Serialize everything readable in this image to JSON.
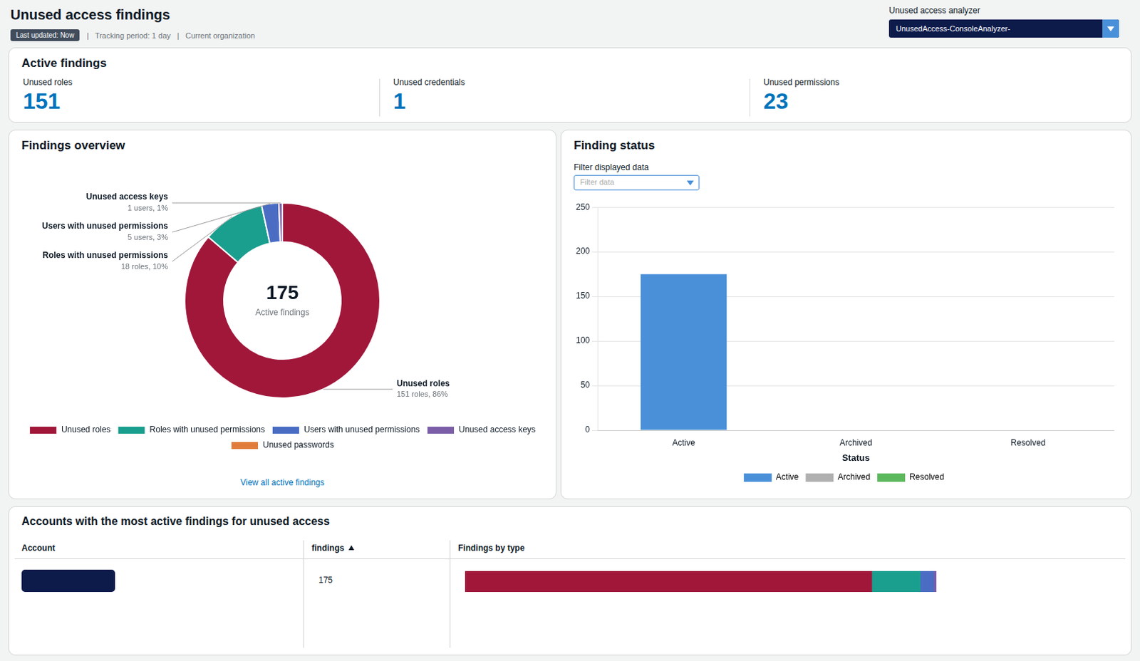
{
  "title": "Unused access findings",
  "subtitle": [
    "Last updated: Now",
    "  |   Tracking period: 1 day   |   Current organization"
  ],
  "annotations": [
    "Unused access analyzer",
    "UnusedAccess-ConsoleAnalyzer-"
  ],
  "chart_data": [
    {
      "type": "metrics",
      "title": "Active findings",
      "categories": [
        "Unused roles",
        "Unused credentials",
        "Unused permissions"
      ],
      "values": [
        151,
        1,
        23
      ]
    },
    {
      "type": "doughnut",
      "title": "Findings overview",
      "categories": [
        "Unused roles",
        "Roles with unused permissions",
        "Users with unused permissions",
        "Unused access keys",
        "Unused passwords"
      ],
      "values": [
        151,
        18,
        5,
        1,
        null
      ],
      "colors": [
        "#a0173a",
        "#1a9e8e",
        "#4a6cc3",
        "#7b5ea7",
        "#e07b39"
      ],
      "data_labels": true,
      "value_labels": [
        "151 roles, 86%",
        "18 roles, 10%",
        "5 users, 3%",
        "1 users, 1%",
        null
      ],
      "legend": "bottom",
      "annotations": [
        "175",
        "Active findings",
        "View all active findings"
      ]
    },
    {
      "type": "bar",
      "title": "Finding status",
      "categories": [
        "Active",
        "Archived",
        "Resolved"
      ],
      "values": [
        175,
        0,
        0
      ],
      "colors": [
        "#4a90d9",
        "#b0b0b0",
        "#5cb85c"
      ],
      "xlabel": "Status",
      "ylim": [
        0,
        250
      ],
      "yticks": [
        0,
        50,
        100,
        150,
        200,
        250
      ],
      "grid": true,
      "legend": "bottom",
      "annotations": [
        "Filter displayed data",
        "Filter data"
      ]
    },
    {
      "type": "bar",
      "orientation": "horizontal",
      "stacked": true,
      "title": "Accounts with the most active findings for unused access",
      "categories": [
        null
      ],
      "series": [
        {
          "color": "#a0173a",
          "values": [
            151
          ]
        },
        {
          "color": "#1a9e8e",
          "values": [
            18
          ]
        },
        {
          "color": "#4a6cc3",
          "values": [
            5
          ]
        },
        {
          "color": "#7b5ea7",
          "values": [
            1
          ]
        }
      ],
      "xlim": [
        0,
        175
      ],
      "tick_labels": false,
      "annotations": [
        "Account",
        "findings",
        "Findings by type",
        "175"
      ]
    }
  ]
}
